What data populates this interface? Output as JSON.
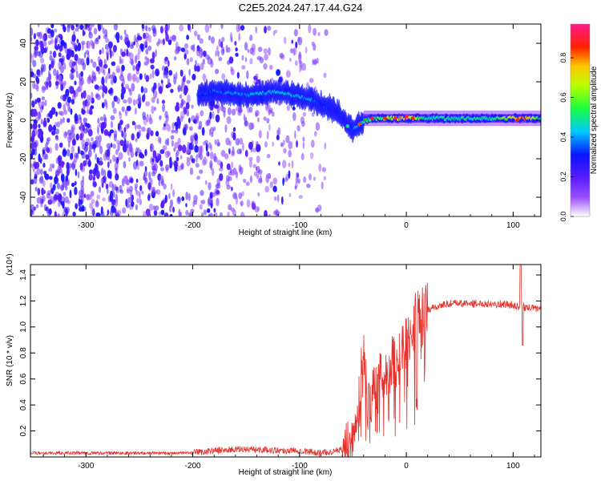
{
  "title": "C2E5.2024.247.17.44.G24",
  "chart_data": [
    {
      "type": "heatmap",
      "title": "C2E5.2024.247.17.44.G24",
      "xlabel": "Height of straight line (km)",
      "ylabel": "Frequency (Hz)",
      "xlim": [
        -352,
        126
      ],
      "ylim": [
        -50,
        50
      ],
      "xticks": [
        -300,
        -200,
        -100,
        0,
        100
      ],
      "yticks": [
        -40,
        -20,
        0,
        20,
        40
      ],
      "colorbar": {
        "label": "Normalized spectral amplitude",
        "range": [
          0,
          0.97
        ],
        "ticks": [
          0.0,
          0.2,
          0.4,
          0.6,
          0.8
        ],
        "tick_labels": [
          "0.0",
          "0.2",
          "0.4",
          "0.6",
          "0.8"
        ]
      },
      "ridge": {
        "x": [
          -195,
          -180,
          -165,
          -150,
          -135,
          -120,
          -105,
          -90,
          -80,
          -70,
          -62,
          -56,
          -50,
          -44,
          -38,
          -30,
          -20,
          -10,
          0,
          20,
          50,
          80,
          110,
          126
        ],
        "freq": [
          13,
          15,
          14,
          13,
          14,
          15,
          13,
          11,
          8,
          6,
          3,
          -2,
          -5,
          -2,
          0,
          1,
          1,
          1,
          1,
          1,
          1,
          1,
          1,
          1
        ],
        "amplitude": [
          0.3,
          0.35,
          0.38,
          0.4,
          0.45,
          0.45,
          0.42,
          0.4,
          0.35,
          0.3,
          0.3,
          0.25,
          0.35,
          0.45,
          0.55,
          0.55,
          0.6,
          0.7,
          0.8,
          0.5,
          0.5,
          0.5,
          0.85,
          0.5
        ]
      },
      "noise_region_x": [
        -352,
        -75
      ]
    },
    {
      "type": "line",
      "xlabel": "Height of straight line (km)",
      "ylabel": "SNR (10 * v/v)",
      "y_scale_label": "(x10⁴)",
      "xlim": [
        -352,
        126
      ],
      "ylim": [
        0,
        1.48
      ],
      "xticks": [
        -300,
        -200,
        -100,
        0,
        100
      ],
      "yticks": [
        0.2,
        0.4,
        0.6,
        0.8,
        1.0,
        1.2,
        1.4
      ],
      "ytick_labels": [
        "0.2",
        "0.4",
        "0.6",
        "0.8",
        "1.0",
        "1.2",
        "1.4"
      ],
      "series": [
        {
          "color": "#e8302a",
          "x": [
            -352,
            -300,
            -250,
            -200,
            -180,
            -150,
            -120,
            -100,
            -80,
            -70,
            -60,
            -55,
            -50,
            -45,
            -42,
            -40,
            -38,
            -35,
            -30,
            -25,
            -20,
            -15,
            -10,
            -5,
            0,
            5,
            10,
            20,
            30,
            40,
            60,
            80,
            100,
            105,
            108,
            110,
            126
          ],
          "y": [
            0.03,
            0.03,
            0.03,
            0.03,
            0.05,
            0.06,
            0.05,
            0.05,
            0.03,
            0.04,
            0.06,
            0.1,
            0.2,
            0.4,
            0.65,
            0.85,
            0.6,
            0.45,
            0.5,
            0.6,
            0.65,
            0.7,
            0.75,
            0.8,
            0.9,
            1.0,
            1.08,
            1.13,
            1.16,
            1.18,
            1.18,
            1.18,
            1.17,
            1.15,
            1.2,
            1.15,
            1.14
          ]
        }
      ]
    }
  ]
}
